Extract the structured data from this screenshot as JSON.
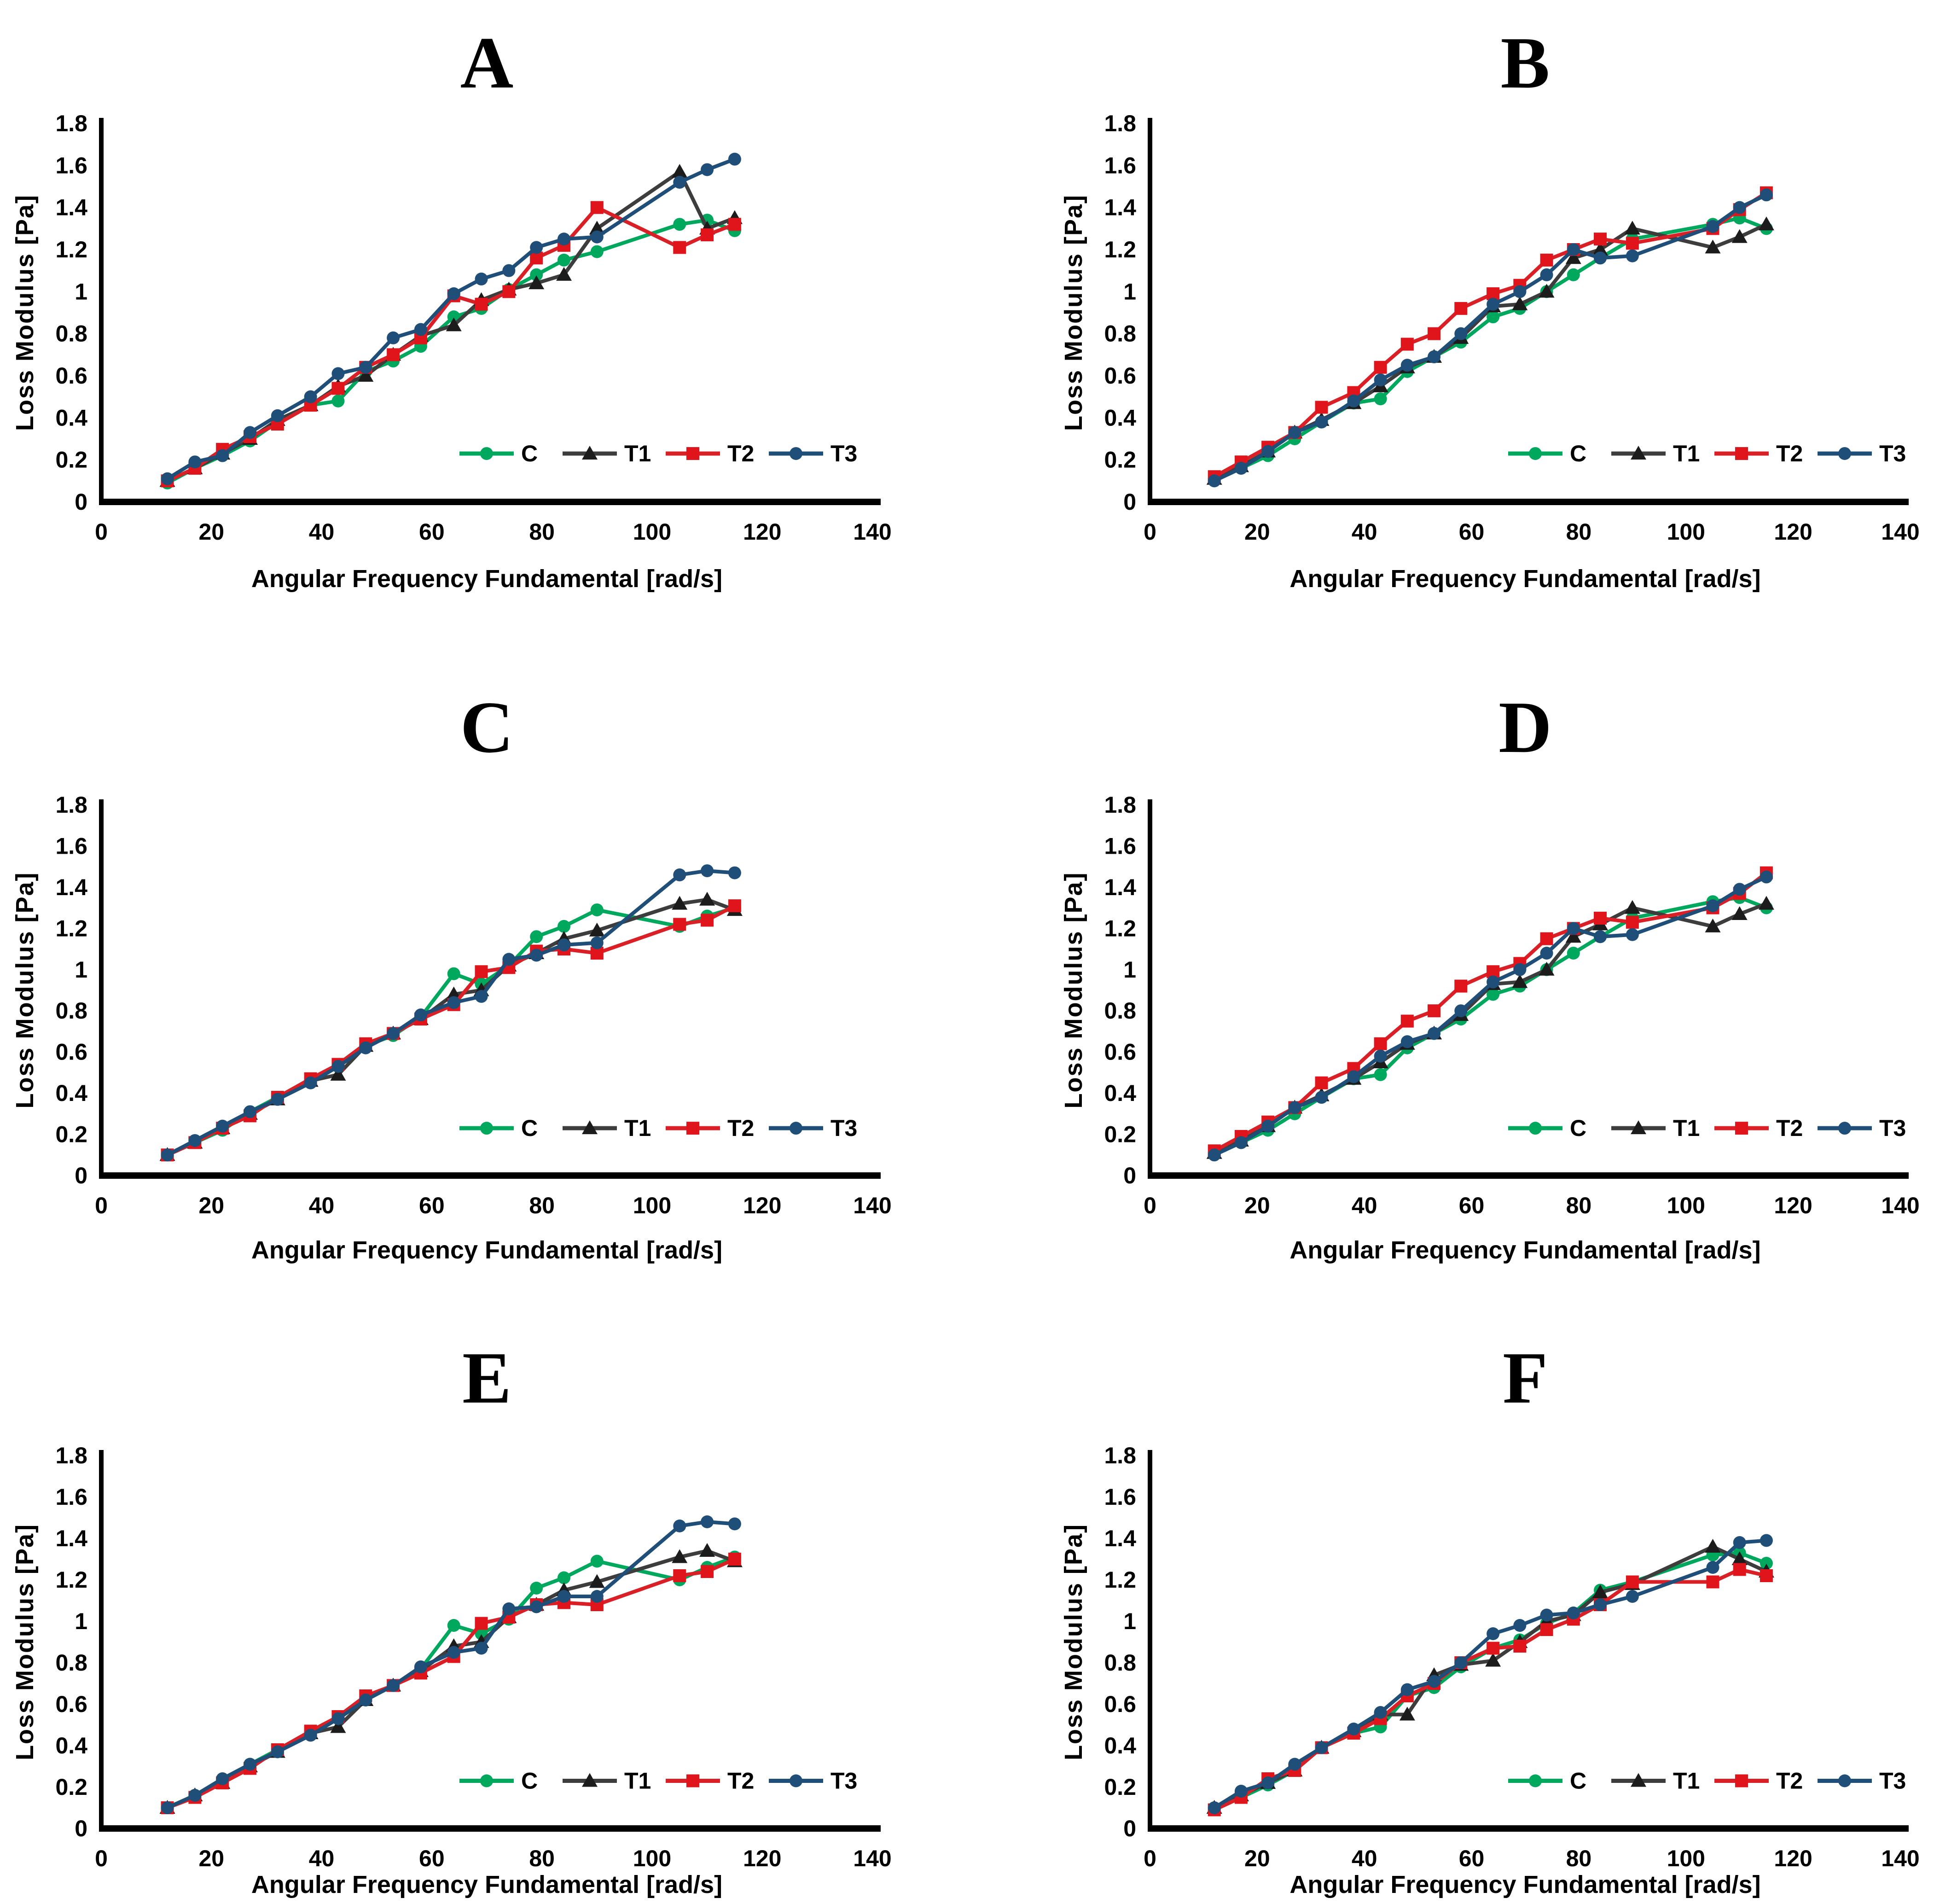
{
  "figure": {
    "x_axis": {
      "label": "Angular Frequency Fundamental [rad/s]",
      "ticks": [
        0,
        20,
        40,
        60,
        80,
        100,
        120,
        140
      ],
      "max": 140
    },
    "y_axis": {
      "label": "Loss  Modulus [Pa]",
      "ticks": [
        "0",
        "0.2",
        "0.4",
        "0.6",
        "0.8",
        "1",
        "1.2",
        "1.4",
        "1.6",
        "1.8"
      ],
      "max": 1.8
    },
    "legend_labels": [
      "C",
      "T1",
      "T2",
      "T3"
    ],
    "series_styles": {
      "C": {
        "line": "#00A85D",
        "fill": "#00A85D",
        "marker": "circle"
      },
      "T1": {
        "line": "#3D3D3D",
        "fill": "#1C1C1C",
        "marker": "triangle"
      },
      "T2": {
        "line": "#D92027",
        "fill": "#E0151C",
        "marker": "square"
      },
      "T3": {
        "line": "#1F4E79",
        "fill": "#1F4E79",
        "marker": "circle"
      }
    }
  },
  "chart_data": [
    {
      "panel": "A",
      "type": "line",
      "title": "A",
      "xlabel": "Angular Frequency Fundamental [rad/s]",
      "ylabel": "Loss Modulus [Pa]",
      "xlim": [
        0,
        140
      ],
      "ylim": [
        0,
        1.8
      ],
      "x": [
        12,
        17,
        22,
        27,
        32,
        38,
        43,
        48,
        53,
        58,
        64,
        69,
        74,
        79,
        84,
        90,
        105,
        110,
        115
      ],
      "series": [
        {
          "name": "C",
          "values": [
            0.09,
            0.16,
            0.22,
            0.29,
            0.38,
            0.46,
            0.48,
            0.62,
            0.67,
            0.74,
            0.88,
            0.92,
            1.01,
            1.08,
            1.15,
            1.19,
            1.32,
            1.34,
            1.29
          ]
        },
        {
          "name": "T1",
          "values": [
            0.1,
            0.16,
            0.23,
            0.3,
            0.39,
            0.46,
            0.55,
            0.6,
            0.7,
            0.79,
            0.84,
            0.96,
            1.01,
            1.04,
            1.08,
            1.3,
            1.57,
            1.3,
            1.35
          ]
        },
        {
          "name": "T2",
          "values": [
            0.1,
            0.16,
            0.25,
            0.31,
            0.37,
            0.46,
            0.54,
            0.64,
            0.7,
            0.78,
            0.98,
            0.94,
            1.0,
            1.16,
            1.22,
            1.4,
            1.21,
            1.27,
            1.32
          ]
        },
        {
          "name": "T3",
          "values": [
            0.11,
            0.19,
            0.22,
            0.33,
            0.41,
            0.5,
            0.61,
            0.64,
            0.78,
            0.82,
            0.99,
            1.06,
            1.1,
            1.21,
            1.25,
            1.26,
            1.52,
            1.58,
            1.63
          ]
        }
      ]
    },
    {
      "panel": "B",
      "type": "line",
      "title": "B",
      "xlabel": "Angular Frequency Fundamental [rad/s]",
      "ylabel": "Loss Modulus [Pa]",
      "xlim": [
        0,
        140
      ],
      "ylim": [
        0,
        1.8
      ],
      "x": [
        12,
        17,
        22,
        27,
        32,
        38,
        43,
        48,
        53,
        58,
        64,
        69,
        74,
        79,
        84,
        90,
        105,
        110,
        115
      ],
      "series": [
        {
          "name": "C",
          "values": [
            0.11,
            0.16,
            0.22,
            0.3,
            0.38,
            0.47,
            0.49,
            0.62,
            0.69,
            0.76,
            0.88,
            0.92,
            1.0,
            1.08,
            1.16,
            1.25,
            1.32,
            1.35,
            1.3
          ]
        },
        {
          "name": "T1",
          "values": [
            0.11,
            0.17,
            0.24,
            0.33,
            0.39,
            0.47,
            0.55,
            0.64,
            0.69,
            0.78,
            0.93,
            0.94,
            1.0,
            1.16,
            1.2,
            1.3,
            1.21,
            1.26,
            1.32
          ]
        },
        {
          "name": "T2",
          "values": [
            0.12,
            0.19,
            0.26,
            0.33,
            0.45,
            0.52,
            0.64,
            0.75,
            0.8,
            0.92,
            0.99,
            1.03,
            1.15,
            1.2,
            1.25,
            1.23,
            1.3,
            1.39,
            1.47
          ]
        },
        {
          "name": "T3",
          "values": [
            0.1,
            0.16,
            0.24,
            0.33,
            0.38,
            0.48,
            0.58,
            0.65,
            0.69,
            0.8,
            0.94,
            1.0,
            1.08,
            1.2,
            1.16,
            1.17,
            1.31,
            1.4,
            1.46
          ]
        }
      ]
    },
    {
      "panel": "C",
      "type": "line",
      "title": "C",
      "xlabel": "Angular Frequency Fundamental [rad/s]",
      "ylabel": "Loss Modulus [Pa]",
      "xlim": [
        0,
        140
      ],
      "ylim": [
        0,
        1.8
      ],
      "x": [
        12,
        17,
        22,
        27,
        32,
        38,
        43,
        48,
        53,
        58,
        64,
        69,
        74,
        79,
        84,
        90,
        105,
        110,
        115
      ],
      "series": [
        {
          "name": "C",
          "values": [
            0.1,
            0.16,
            0.22,
            0.31,
            0.38,
            0.46,
            0.53,
            0.63,
            0.68,
            0.77,
            0.98,
            0.93,
            1.02,
            1.16,
            1.21,
            1.29,
            1.21,
            1.26,
            1.3
          ]
        },
        {
          "name": "T1",
          "values": [
            0.1,
            0.16,
            0.23,
            0.3,
            0.37,
            0.46,
            0.49,
            0.63,
            0.69,
            0.76,
            0.88,
            0.9,
            1.02,
            1.08,
            1.15,
            1.19,
            1.32,
            1.34,
            1.29
          ]
        },
        {
          "name": "T2",
          "values": [
            0.1,
            0.16,
            0.23,
            0.29,
            0.38,
            0.47,
            0.54,
            0.64,
            0.69,
            0.76,
            0.83,
            0.99,
            1.01,
            1.09,
            1.1,
            1.08,
            1.22,
            1.24,
            1.31
          ]
        },
        {
          "name": "T3",
          "values": [
            0.1,
            0.17,
            0.24,
            0.31,
            0.37,
            0.45,
            0.53,
            0.62,
            0.69,
            0.78,
            0.84,
            0.87,
            1.05,
            1.07,
            1.12,
            1.13,
            1.46,
            1.48,
            1.47
          ]
        }
      ]
    },
    {
      "panel": "D",
      "type": "line",
      "title": "D",
      "xlabel": "Angular Frequency Fundamental [rad/s]",
      "ylabel": "Loss Modulus [Pa]",
      "xlim": [
        0,
        140
      ],
      "ylim": [
        0,
        1.8
      ],
      "x": [
        12,
        17,
        22,
        27,
        32,
        38,
        43,
        48,
        53,
        58,
        64,
        69,
        74,
        79,
        84,
        90,
        105,
        110,
        115
      ],
      "series": [
        {
          "name": "C",
          "values": [
            0.11,
            0.16,
            0.22,
            0.3,
            0.38,
            0.47,
            0.49,
            0.62,
            0.69,
            0.76,
            0.88,
            0.92,
            1.0,
            1.08,
            1.16,
            1.25,
            1.33,
            1.35,
            1.3
          ]
        },
        {
          "name": "T1",
          "values": [
            0.11,
            0.17,
            0.24,
            0.33,
            0.39,
            0.47,
            0.55,
            0.64,
            0.69,
            0.78,
            0.93,
            0.94,
            1.0,
            1.16,
            1.22,
            1.3,
            1.21,
            1.27,
            1.32
          ]
        },
        {
          "name": "T2",
          "values": [
            0.12,
            0.19,
            0.26,
            0.33,
            0.45,
            0.52,
            0.64,
            0.75,
            0.8,
            0.92,
            0.99,
            1.03,
            1.15,
            1.2,
            1.25,
            1.23,
            1.3,
            1.37,
            1.47
          ]
        },
        {
          "name": "T3",
          "values": [
            0.1,
            0.16,
            0.24,
            0.33,
            0.38,
            0.48,
            0.58,
            0.65,
            0.69,
            0.8,
            0.94,
            1.0,
            1.08,
            1.2,
            1.16,
            1.17,
            1.31,
            1.39,
            1.45
          ]
        }
      ]
    },
    {
      "panel": "E",
      "type": "line",
      "title": "E",
      "xlabel": "Angular Frequency Fundamental [rad/s]",
      "ylabel": "Loss Modulus [Pa]",
      "xlim": [
        0,
        140
      ],
      "ylim": [
        0,
        1.8
      ],
      "x": [
        12,
        17,
        22,
        27,
        32,
        38,
        43,
        48,
        53,
        58,
        64,
        69,
        74,
        79,
        84,
        90,
        105,
        110,
        115
      ],
      "series": [
        {
          "name": "C",
          "values": [
            0.1,
            0.16,
            0.22,
            0.31,
            0.38,
            0.46,
            0.53,
            0.62,
            0.69,
            0.77,
            0.98,
            0.94,
            1.01,
            1.16,
            1.21,
            1.29,
            1.2,
            1.26,
            1.31
          ]
        },
        {
          "name": "T1",
          "values": [
            0.1,
            0.16,
            0.22,
            0.3,
            0.37,
            0.46,
            0.49,
            0.62,
            0.69,
            0.76,
            0.88,
            0.9,
            1.02,
            1.08,
            1.15,
            1.19,
            1.31,
            1.34,
            1.29
          ]
        },
        {
          "name": "T2",
          "values": [
            0.1,
            0.15,
            0.22,
            0.29,
            0.38,
            0.47,
            0.54,
            0.64,
            0.69,
            0.75,
            0.83,
            0.99,
            1.02,
            1.08,
            1.09,
            1.08,
            1.22,
            1.24,
            1.3
          ]
        },
        {
          "name": "T3",
          "values": [
            0.1,
            0.16,
            0.24,
            0.31,
            0.37,
            0.45,
            0.53,
            0.62,
            0.69,
            0.78,
            0.85,
            0.87,
            1.06,
            1.07,
            1.12,
            1.12,
            1.46,
            1.48,
            1.47
          ]
        }
      ]
    },
    {
      "panel": "F",
      "type": "line",
      "title": "F",
      "xlabel": "Angular Frequency Fundamental [rad/s]",
      "ylabel": "Loss Modulus [Pa]",
      "xlim": [
        0,
        140
      ],
      "ylim": [
        0,
        1.8
      ],
      "x": [
        12,
        17,
        22,
        27,
        32,
        38,
        43,
        48,
        53,
        58,
        64,
        69,
        74,
        79,
        84,
        90,
        105,
        110,
        115
      ],
      "series": [
        {
          "name": "C",
          "values": [
            0.09,
            0.15,
            0.21,
            0.28,
            0.39,
            0.46,
            0.49,
            0.64,
            0.68,
            0.78,
            0.87,
            0.91,
            0.99,
            1.04,
            1.15,
            1.19,
            1.32,
            1.33,
            1.28
          ]
        },
        {
          "name": "T1",
          "values": [
            0.1,
            0.16,
            0.22,
            0.28,
            0.39,
            0.47,
            0.55,
            0.55,
            0.74,
            0.79,
            0.81,
            0.9,
            1.0,
            1.03,
            1.14,
            1.18,
            1.36,
            1.3,
            1.24
          ]
        },
        {
          "name": "T2",
          "values": [
            0.09,
            0.15,
            0.24,
            0.28,
            0.39,
            0.46,
            0.53,
            0.64,
            0.7,
            0.8,
            0.87,
            0.88,
            0.96,
            1.01,
            1.08,
            1.19,
            1.19,
            1.25,
            1.22
          ]
        },
        {
          "name": "T3",
          "values": [
            0.1,
            0.18,
            0.22,
            0.31,
            0.39,
            0.48,
            0.56,
            0.67,
            0.71,
            0.8,
            0.94,
            0.98,
            1.03,
            1.04,
            1.08,
            1.12,
            1.26,
            1.38,
            1.39
          ]
        }
      ]
    }
  ]
}
